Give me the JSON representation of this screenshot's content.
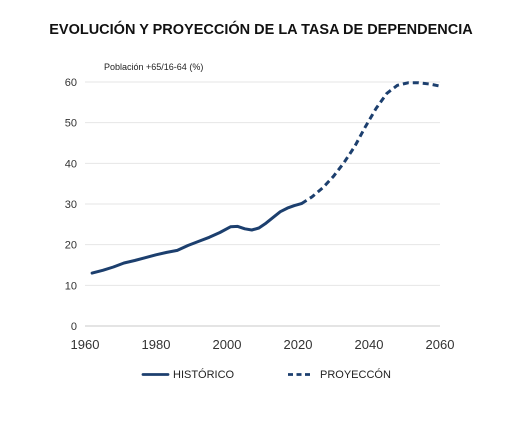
{
  "chart_data": {
    "type": "line",
    "title": "EVOLUCIÓN Y PROYECCIÓN DE LA TASA DE DEPENDENCIA",
    "ylabel": "Población +65/16-64 (%)",
    "xlabel": "",
    "xlim": [
      1960,
      2060
    ],
    "ylim": [
      0,
      60
    ],
    "x_ticks": [
      "1960",
      "1980",
      "2000",
      "2020",
      "2040",
      "2060"
    ],
    "y_ticks": [
      "0",
      "10",
      "20",
      "30",
      "40",
      "50",
      "60"
    ],
    "grid": "horizontal",
    "legend_position": "bottom",
    "color": "#1c3f6e",
    "series": [
      {
        "name": "HISTÓRICO",
        "style": "solid",
        "x": [
          1962,
          1965,
          1968,
          1971,
          1974,
          1977,
          1980,
          1983,
          1986,
          1989,
          1992,
          1995,
          1998,
          2001,
          2003,
          2005,
          2007,
          2009,
          2011,
          2013,
          2015,
          2017,
          2019,
          2021
        ],
        "y": [
          13.0,
          13.7,
          14.5,
          15.5,
          16.1,
          16.8,
          17.5,
          18.1,
          18.6,
          19.8,
          20.8,
          21.8,
          23.0,
          24.4,
          24.5,
          23.9,
          23.6,
          24.1,
          25.3,
          26.7,
          28.1,
          29.0,
          29.6,
          30.1
        ]
      },
      {
        "name": "PROYECCÓN",
        "style": "dashed",
        "x": [
          2021,
          2024,
          2027,
          2030,
          2033,
          2036,
          2039,
          2042,
          2045,
          2048,
          2051,
          2054,
          2057,
          2060
        ],
        "y": [
          30.1,
          31.8,
          34.0,
          36.8,
          40.2,
          44.2,
          49.0,
          53.5,
          57.2,
          59.2,
          59.8,
          59.8,
          59.5,
          59.0
        ]
      }
    ]
  }
}
